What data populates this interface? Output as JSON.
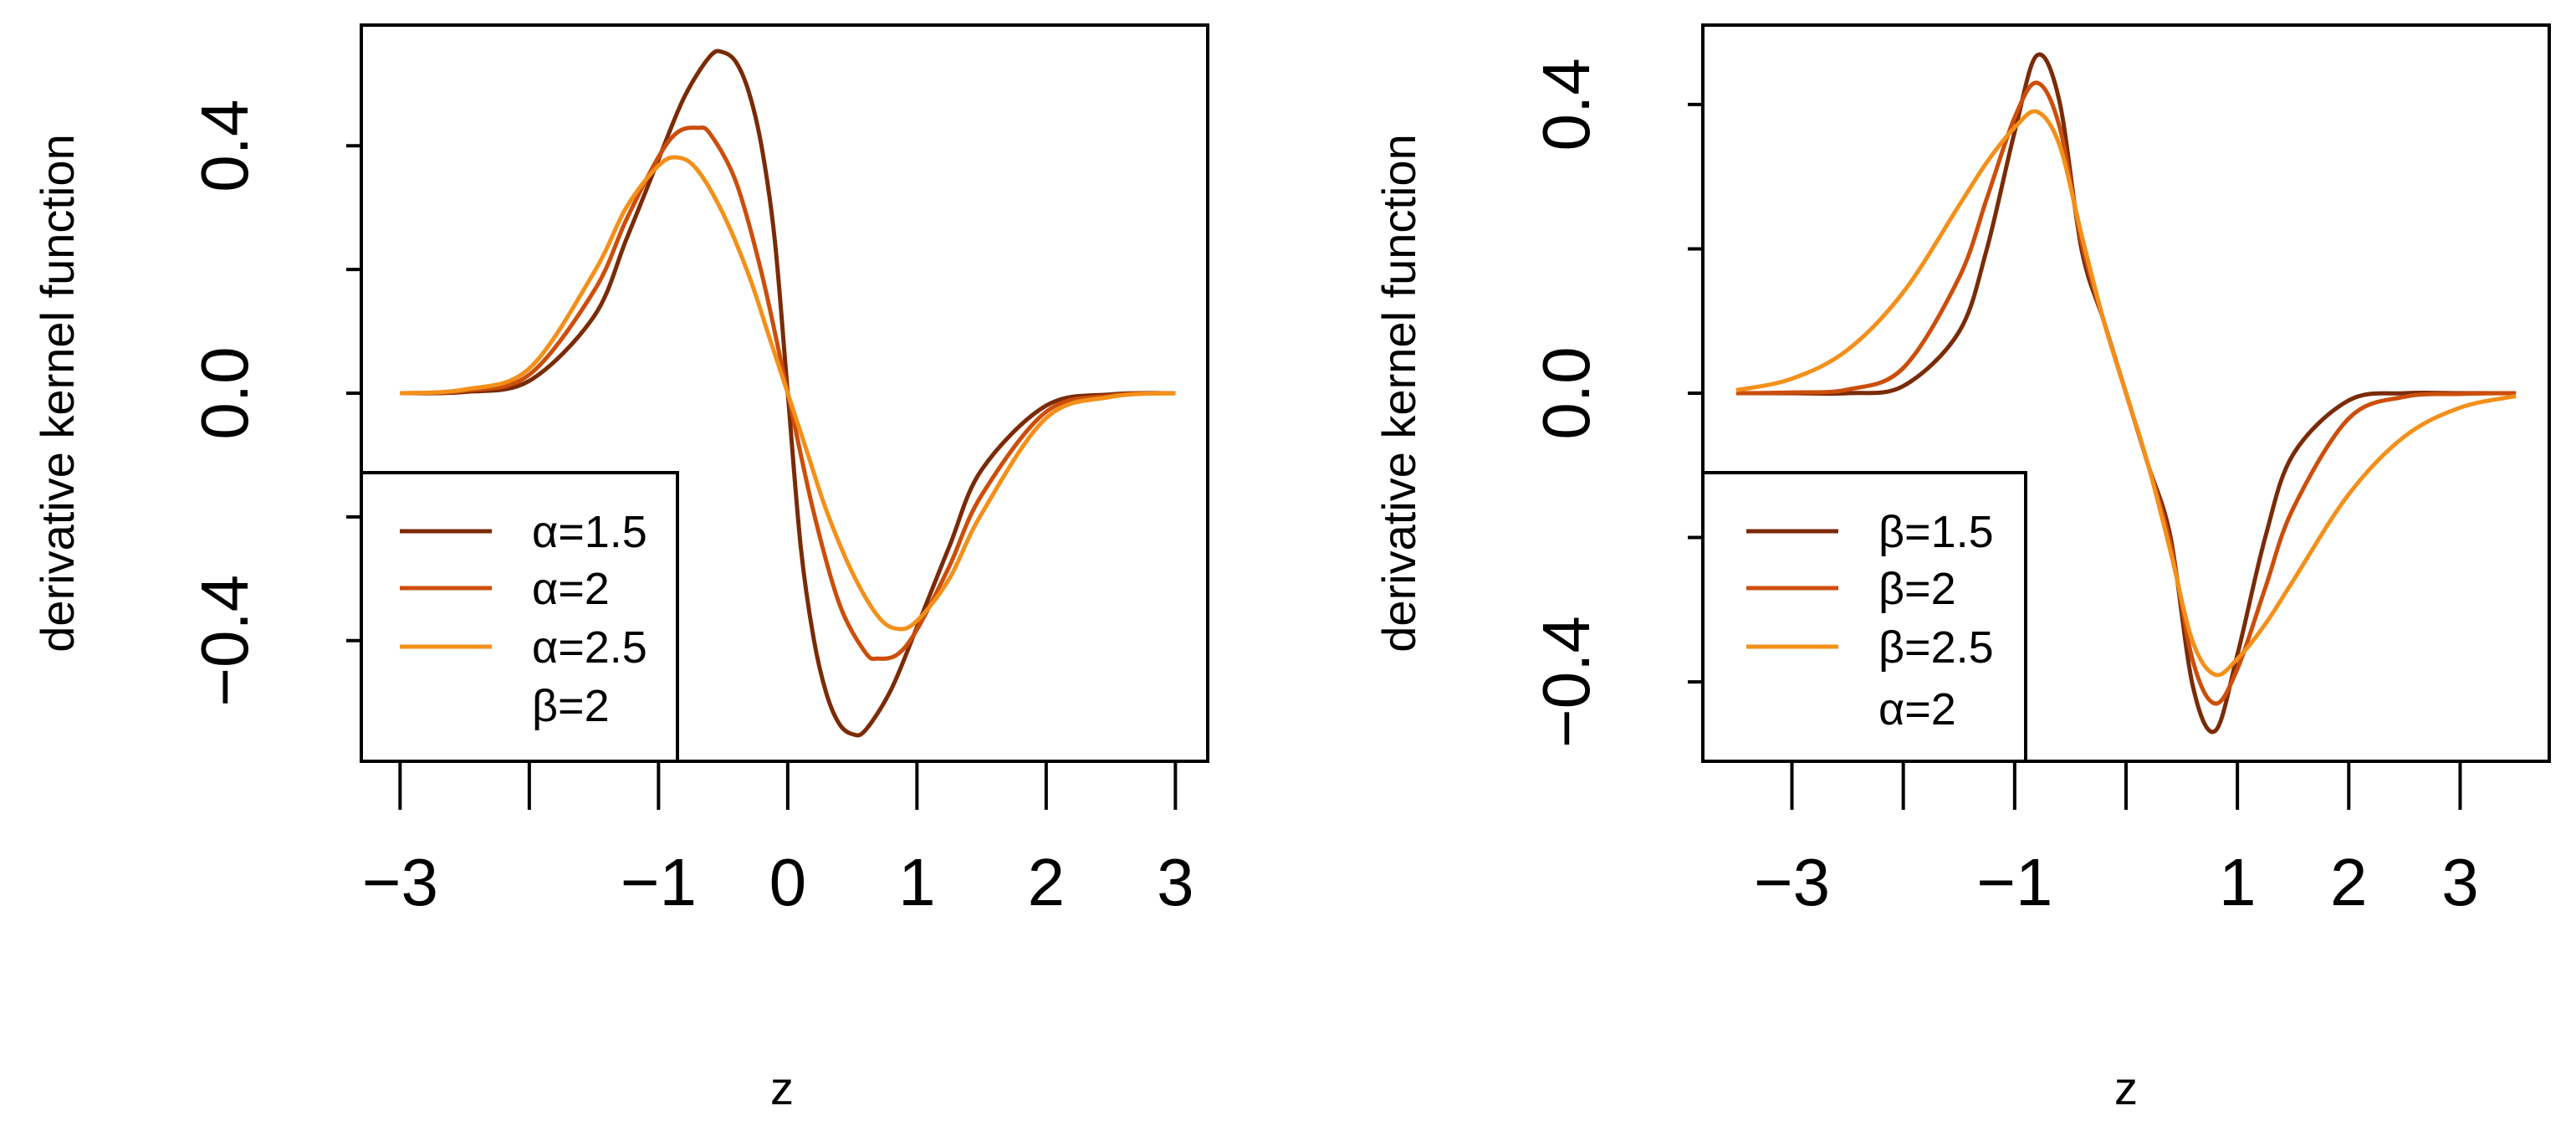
{
  "chart_data": [
    {
      "type": "line",
      "title": "",
      "xlabel": "z",
      "ylabel": "derivative kernel function",
      "xlim": [
        -3.3,
        3.25
      ],
      "ylim": [
        -0.595,
        0.595
      ],
      "xticks": [
        -3,
        -2,
        -1,
        0,
        1,
        2,
        3
      ],
      "xtick_labels": [
        "−3",
        "",
        "−1",
        "0",
        "1",
        "2",
        "3"
      ],
      "yticks": [
        -0.4,
        -0.2,
        0.0,
        0.2,
        0.4
      ],
      "ytick_labels": [
        "−0.4",
        "",
        "0.0",
        "",
        "0.4"
      ],
      "legend_position": "bottom-left",
      "legend_note": "β=2",
      "series": [
        {
          "name": "α=1.5",
          "color": "#7a2b06",
          "x": [
            -3.0,
            -2.5,
            -2.0,
            -1.5,
            -1.25,
            -1.0,
            -0.8,
            -0.6,
            -0.5,
            -0.4,
            -0.3,
            -0.2,
            -0.1,
            0.0,
            0.1,
            0.2,
            0.3,
            0.4,
            0.5,
            0.6,
            0.8,
            1.0,
            1.25,
            1.5,
            2.0,
            2.5,
            3.0
          ],
          "y": [
            0.0,
            0.002,
            0.02,
            0.124,
            0.248,
            0.378,
            0.479,
            0.545,
            0.551,
            0.535,
            0.486,
            0.396,
            0.247,
            0.0,
            -0.247,
            -0.396,
            -0.486,
            -0.535,
            -0.551,
            -0.545,
            -0.479,
            -0.378,
            -0.248,
            -0.124,
            -0.02,
            -0.002,
            0.0
          ]
        },
        {
          "name": "α=2",
          "color": "#cc4e0a",
          "x": [
            -3.0,
            -2.5,
            -2.0,
            -1.5,
            -1.25,
            -1.0,
            -0.85,
            -0.7,
            -0.6,
            -0.4,
            -0.2,
            0.0,
            0.2,
            0.4,
            0.6,
            0.7,
            0.85,
            1.0,
            1.25,
            1.5,
            2.0,
            2.5,
            3.0
          ],
          "y": [
            0.0,
            0.004,
            0.03,
            0.165,
            0.28,
            0.382,
            0.422,
            0.429,
            0.419,
            0.341,
            0.192,
            0.0,
            -0.192,
            -0.341,
            -0.419,
            -0.429,
            -0.422,
            -0.382,
            -0.28,
            -0.165,
            -0.03,
            -0.004,
            0.0
          ]
        },
        {
          "name": "α=2.5",
          "color": "#f4901a",
          "x": [
            -3.0,
            -2.5,
            -2.0,
            -1.5,
            -1.25,
            -1.0,
            -0.85,
            -0.7,
            -0.5,
            -0.3,
            -0.15,
            0.0,
            0.15,
            0.3,
            0.5,
            0.7,
            0.85,
            1.0,
            1.25,
            1.5,
            2.0,
            2.5,
            3.0
          ],
          "y": [
            0.0,
            0.006,
            0.04,
            0.195,
            0.3,
            0.368,
            0.381,
            0.361,
            0.29,
            0.19,
            0.095,
            0.0,
            -0.095,
            -0.19,
            -0.29,
            -0.361,
            -0.381,
            -0.368,
            -0.3,
            -0.195,
            -0.04,
            -0.006,
            0.0
          ]
        }
      ]
    },
    {
      "type": "line",
      "title": "",
      "xlabel": "z",
      "ylabel": "derivative kernel function",
      "xlim": [
        -3.8,
        3.8
      ],
      "ylim": [
        -0.51,
        0.51
      ],
      "xticks": [
        -3,
        -2,
        -1,
        0,
        1,
        2,
        3
      ],
      "xtick_labels": [
        "−3",
        "",
        "−1",
        "",
        "1",
        "2",
        "3"
      ],
      "yticks": [
        -0.4,
        -0.2,
        0.0,
        0.2,
        0.4
      ],
      "ytick_labels": [
        "−0.4",
        "",
        "0.0",
        "",
        "0.4"
      ],
      "legend_position": "bottom-left",
      "legend_note": "α=2",
      "series": [
        {
          "name": "β=1.5",
          "color": "#7a2b06",
          "x": [
            -3.5,
            -3.0,
            -2.5,
            -2.0,
            -1.5,
            -1.25,
            -1.0,
            -0.8,
            -0.6,
            -0.4,
            -0.2,
            0.0,
            0.2,
            0.4,
            0.6,
            0.8,
            1.0,
            1.25,
            1.5,
            2.0,
            2.5,
            3.0,
            3.5
          ],
          "y": [
            0.0,
            0.0,
            0.0,
            0.01,
            0.085,
            0.2,
            0.362,
            0.468,
            0.406,
            0.2,
            0.1,
            0.0,
            -0.1,
            -0.2,
            -0.406,
            -0.468,
            -0.362,
            -0.2,
            -0.085,
            -0.01,
            0.0,
            0.0,
            0.0
          ]
        },
        {
          "name": "β=2",
          "color": "#cc4e0a",
          "x": [
            -3.5,
            -3.0,
            -2.5,
            -2.0,
            -1.5,
            -1.25,
            -1.0,
            -0.8,
            -0.6,
            -0.4,
            -0.2,
            0.0,
            0.2,
            0.4,
            0.6,
            0.8,
            1.0,
            1.25,
            1.5,
            2.0,
            2.5,
            3.0,
            3.5
          ],
          "y": [
            0.0,
            0.001,
            0.005,
            0.035,
            0.16,
            0.27,
            0.382,
            0.43,
            0.371,
            0.21,
            0.1,
            0.0,
            -0.1,
            -0.21,
            -0.371,
            -0.43,
            -0.382,
            -0.27,
            -0.16,
            -0.035,
            -0.005,
            -0.001,
            0.0
          ]
        },
        {
          "name": "β=2.5",
          "color": "#f4901a",
          "x": [
            -3.5,
            -3.0,
            -2.5,
            -2.0,
            -1.5,
            -1.25,
            -1.0,
            -0.8,
            -0.6,
            -0.4,
            -0.2,
            0.0,
            0.2,
            0.4,
            0.6,
            0.8,
            1.0,
            1.25,
            1.5,
            2.0,
            2.5,
            3.0,
            3.5
          ],
          "y": [
            0.004,
            0.02,
            0.06,
            0.14,
            0.26,
            0.32,
            0.368,
            0.39,
            0.345,
            0.22,
            0.1,
            0.0,
            -0.1,
            -0.22,
            -0.345,
            -0.39,
            -0.368,
            -0.32,
            -0.26,
            -0.14,
            -0.06,
            -0.02,
            -0.004
          ]
        }
      ]
    }
  ]
}
